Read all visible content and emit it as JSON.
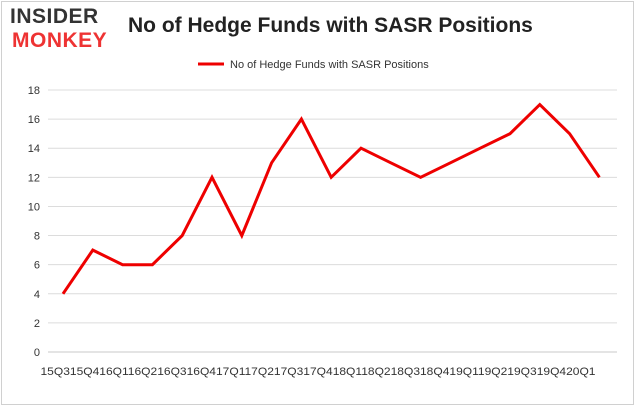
{
  "logo": {
    "top": "INSIDER",
    "bottom": "MONKEY"
  },
  "chart_data": {
    "type": "line",
    "title": "No of Hedge Funds with SASR Positions",
    "xlabel": "",
    "ylabel": "",
    "categories": [
      "2015Q3",
      "2015Q4",
      "2016Q1",
      "2016Q2",
      "2016Q3",
      "2016Q4",
      "2017Q1",
      "2017Q2",
      "2017Q3",
      "2017Q4",
      "2018Q1",
      "2018Q2",
      "2018Q3",
      "2018Q4",
      "2019Q1",
      "2019Q2",
      "2019Q3",
      "2019Q4",
      "2020Q1"
    ],
    "x_tick_text": "15Q315Q416Q116Q216Q316Q417Q117Q217Q317Q418Q118Q218Q318Q419Q119Q219Q319Q420Q1",
    "series": [
      {
        "name": "No of Hedge Funds with SASR Positions",
        "values": [
          4,
          7,
          6,
          6,
          8,
          12,
          8,
          13,
          16,
          12,
          14,
          13,
          12,
          13,
          14,
          15,
          17,
          15,
          12
        ],
        "color": "#ee0000"
      }
    ],
    "ylim": [
      0,
      18
    ],
    "yticks": [
      0,
      2,
      4,
      6,
      8,
      10,
      12,
      14,
      16,
      18
    ],
    "grid": true,
    "legend": "top-center"
  }
}
